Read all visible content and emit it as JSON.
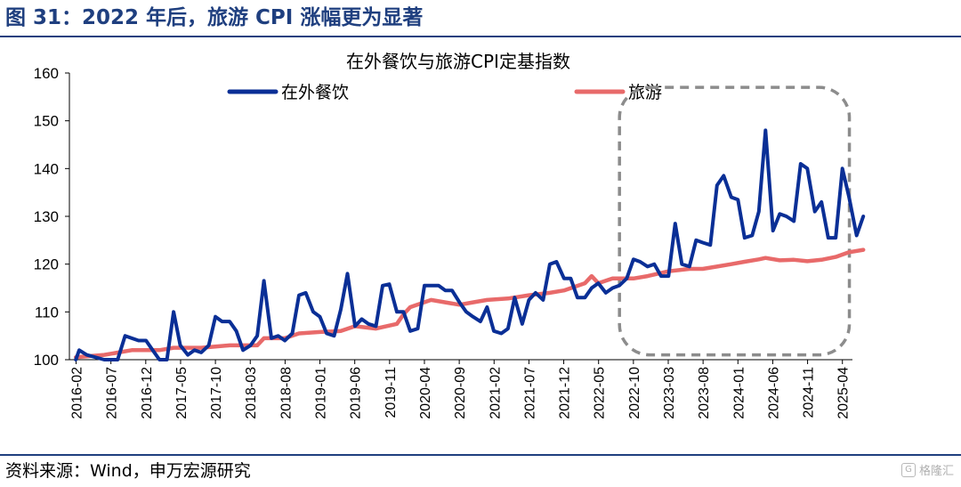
{
  "figure_title": "图 31：2022 年后，旅游 CPI 涨幅更为显著",
  "source": "资料来源：Wind，申万宏源研究",
  "watermark": "格隆汇",
  "colors": {
    "title": "#1f3f7f",
    "dining": "#0a2f96",
    "travel": "#e86a6a",
    "highlight_box": "#8c8c8c"
  },
  "chart_data": {
    "type": "line",
    "title": "在外餐饮与旅游CPI定基指数",
    "legend_position": "top",
    "grid": false,
    "ylim": [
      100,
      160
    ],
    "yticks": [
      100,
      110,
      120,
      130,
      140,
      150,
      160
    ],
    "x_start": "2016-02",
    "x_end": "2025-04",
    "xtick_labels": [
      "2016-02",
      "2016-07",
      "2016-12",
      "2017-05",
      "2017-10",
      "2018-03",
      "2018-08",
      "2019-01",
      "2019-06",
      "2019-11",
      "2020-04",
      "2020-09",
      "2021-02",
      "2021-07",
      "2021-12",
      "2022-05",
      "2022-10",
      "2023-03",
      "2023-08",
      "2024-01",
      "2024-06",
      "2024-11",
      "2025-04"
    ],
    "highlight": {
      "from": "2022-08",
      "to": "2025-05",
      "y_from": 101,
      "y_to": 157
    },
    "series": [
      {
        "name": "在外餐饮",
        "color": "#0a2f96",
        "values": [
          [
            2016.08,
            100
          ],
          [
            2016.12,
            102
          ],
          [
            2016.21,
            101
          ],
          [
            2016.42,
            100
          ],
          [
            2016.5,
            100
          ],
          [
            2016.58,
            100
          ],
          [
            2016.67,
            105
          ],
          [
            2016.75,
            104.5
          ],
          [
            2016.83,
            104
          ],
          [
            2016.92,
            104
          ],
          [
            2017.0,
            102
          ],
          [
            2017.08,
            100
          ],
          [
            2017.17,
            100
          ],
          [
            2017.25,
            110
          ],
          [
            2017.33,
            103
          ],
          [
            2017.42,
            101
          ],
          [
            2017.5,
            102
          ],
          [
            2017.58,
            101.5
          ],
          [
            2017.67,
            103
          ],
          [
            2017.75,
            109
          ],
          [
            2017.83,
            108
          ],
          [
            2017.92,
            108
          ],
          [
            2018.0,
            106
          ],
          [
            2018.08,
            102
          ],
          [
            2018.17,
            103
          ],
          [
            2018.25,
            105
          ],
          [
            2018.33,
            116.5
          ],
          [
            2018.42,
            104.5
          ],
          [
            2018.5,
            105
          ],
          [
            2018.58,
            104
          ],
          [
            2018.67,
            105.5
          ],
          [
            2018.75,
            113.5
          ],
          [
            2018.83,
            114
          ],
          [
            2018.92,
            110
          ],
          [
            2019.0,
            109
          ],
          [
            2019.08,
            105.5
          ],
          [
            2019.17,
            105
          ],
          [
            2019.25,
            110.5
          ],
          [
            2019.33,
            118
          ],
          [
            2019.42,
            107
          ],
          [
            2019.5,
            108.5
          ],
          [
            2019.58,
            107.5
          ],
          [
            2019.67,
            107
          ],
          [
            2019.75,
            115.5
          ],
          [
            2019.83,
            115.8
          ],
          [
            2019.92,
            110
          ],
          [
            2020.0,
            110
          ],
          [
            2020.08,
            106
          ],
          [
            2020.17,
            106.5
          ],
          [
            2020.25,
            115.5
          ],
          [
            2020.33,
            115.5
          ],
          [
            2020.42,
            115.5
          ],
          [
            2020.5,
            114.5
          ],
          [
            2020.58,
            114.5
          ],
          [
            2020.67,
            112
          ],
          [
            2020.75,
            110
          ],
          [
            2020.83,
            109
          ],
          [
            2020.92,
            108
          ],
          [
            2021.0,
            111
          ],
          [
            2021.08,
            106
          ],
          [
            2021.17,
            105.5
          ],
          [
            2021.25,
            106.5
          ],
          [
            2021.33,
            113
          ],
          [
            2021.42,
            107.5
          ],
          [
            2021.5,
            112.5
          ],
          [
            2021.58,
            114
          ],
          [
            2021.67,
            112.5
          ],
          [
            2021.75,
            120
          ],
          [
            2021.83,
            120.5
          ],
          [
            2021.92,
            117
          ],
          [
            2022.0,
            117
          ],
          [
            2022.08,
            113
          ],
          [
            2022.17,
            113
          ],
          [
            2022.25,
            115
          ],
          [
            2022.33,
            116
          ],
          [
            2022.42,
            114
          ],
          [
            2022.5,
            115
          ],
          [
            2022.58,
            115.5
          ],
          [
            2022.67,
            117
          ],
          [
            2022.75,
            121
          ],
          [
            2022.83,
            120.5
          ],
          [
            2022.92,
            119.5
          ],
          [
            2023.0,
            120
          ],
          [
            2023.08,
            117.5
          ],
          [
            2023.17,
            117.5
          ],
          [
            2023.25,
            128.5
          ],
          [
            2023.33,
            120
          ],
          [
            2023.42,
            119.5
          ],
          [
            2023.5,
            125
          ],
          [
            2023.58,
            124.5
          ],
          [
            2023.67,
            124
          ],
          [
            2023.75,
            136.5
          ],
          [
            2023.83,
            138.5
          ],
          [
            2023.92,
            134
          ],
          [
            2024.0,
            133.5
          ],
          [
            2024.08,
            125.5
          ],
          [
            2024.17,
            126
          ],
          [
            2024.25,
            131
          ],
          [
            2024.33,
            148
          ],
          [
            2024.42,
            127
          ],
          [
            2024.5,
            130.5
          ],
          [
            2024.58,
            130
          ],
          [
            2024.67,
            129
          ],
          [
            2024.75,
            141
          ],
          [
            2024.83,
            140
          ],
          [
            2024.92,
            131
          ],
          [
            2025.0,
            133
          ],
          [
            2025.08,
            125.5
          ],
          [
            2025.17,
            125.5
          ],
          [
            2025.25,
            140
          ],
          [
            2025.33,
            134
          ],
          [
            2025.42,
            126
          ],
          [
            2025.5,
            130
          ]
        ]
      },
      {
        "name": "旅游",
        "color": "#e86a6a",
        "values": [
          [
            2016.08,
            100.5
          ],
          [
            2016.42,
            101
          ],
          [
            2016.75,
            102
          ],
          [
            2017.08,
            102
          ],
          [
            2017.25,
            102.5
          ],
          [
            2017.58,
            102.5
          ],
          [
            2017.92,
            103
          ],
          [
            2018.25,
            103
          ],
          [
            2018.33,
            104.5
          ],
          [
            2018.58,
            104.5
          ],
          [
            2018.75,
            105.5
          ],
          [
            2019.0,
            105.8
          ],
          [
            2019.25,
            106
          ],
          [
            2019.42,
            107
          ],
          [
            2019.67,
            106.5
          ],
          [
            2019.92,
            107.5
          ],
          [
            2020.0,
            109.5
          ],
          [
            2020.08,
            111
          ],
          [
            2020.33,
            112.5
          ],
          [
            2020.5,
            112
          ],
          [
            2020.67,
            111.5
          ],
          [
            2020.83,
            112
          ],
          [
            2021.0,
            112.5
          ],
          [
            2021.25,
            112.8
          ],
          [
            2021.5,
            113.5
          ],
          [
            2021.75,
            114
          ],
          [
            2021.92,
            114.5
          ],
          [
            2022.17,
            116
          ],
          [
            2022.25,
            117.5
          ],
          [
            2022.33,
            116
          ],
          [
            2022.5,
            117
          ],
          [
            2022.75,
            117
          ],
          [
            2022.92,
            117.5
          ],
          [
            2023.17,
            118.5
          ],
          [
            2023.42,
            119
          ],
          [
            2023.58,
            119
          ],
          [
            2023.75,
            119.5
          ],
          [
            2023.92,
            120
          ],
          [
            2024.08,
            120.5
          ],
          [
            2024.25,
            121
          ],
          [
            2024.33,
            121.3
          ],
          [
            2024.5,
            120.8
          ],
          [
            2024.67,
            120.9
          ],
          [
            2024.83,
            120.6
          ],
          [
            2025.0,
            120.9
          ],
          [
            2025.17,
            121.5
          ],
          [
            2025.33,
            122.5
          ],
          [
            2025.5,
            123
          ]
        ]
      }
    ]
  }
}
